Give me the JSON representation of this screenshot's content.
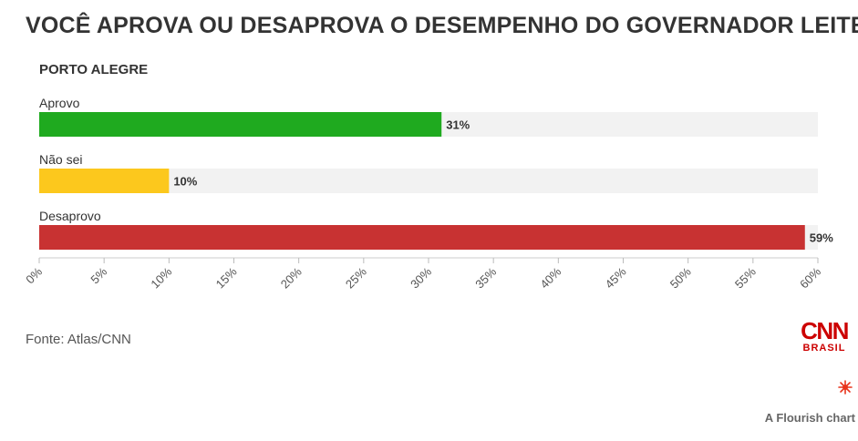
{
  "title": "VOCÊ APROVA OU DESAPROVA O DESEMPENHO DO GOVERNADOR LEITE?",
  "subtitle": "PORTO ALEGRE",
  "source": "Fonte: Atlas/CNN",
  "logo": {
    "text": "CNN",
    "subtext": "BRASIL"
  },
  "credit": "A Flourish chart",
  "chart_data": {
    "type": "bar",
    "orientation": "horizontal",
    "categories": [
      "Aprovo",
      "Não sei",
      "Desaprovo"
    ],
    "values": [
      31,
      10,
      59
    ],
    "value_labels": [
      "31%",
      "10%",
      "59%"
    ],
    "colors": [
      "#1faa1f",
      "#fcc81d",
      "#c83232"
    ],
    "xlim": [
      0,
      60
    ],
    "xticks": [
      0,
      5,
      10,
      15,
      20,
      25,
      30,
      35,
      40,
      45,
      50,
      55,
      60
    ],
    "xtick_labels": [
      "0%",
      "5%",
      "10%",
      "15%",
      "20%",
      "25%",
      "30%",
      "35%",
      "40%",
      "45%",
      "50%",
      "55%",
      "60%"
    ],
    "grid": false
  }
}
